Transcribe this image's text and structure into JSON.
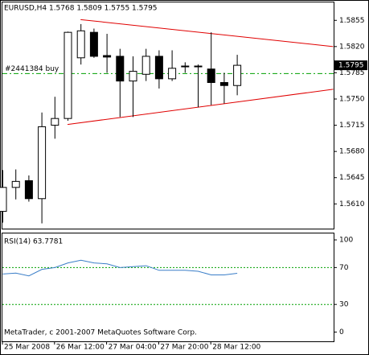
{
  "chart_data": [
    {
      "type": "candlestick",
      "title": "EURUSD,H4  1.5768 1.5809 1.5755 1.5795",
      "categories": [
        "25 Mar 2008",
        null,
        null,
        null,
        "26 Mar 12:00",
        null,
        null,
        null,
        "27 Mar 04:00",
        null,
        null,
        null,
        "27 Mar 20:00",
        null,
        null,
        null,
        "28 Mar 12:00",
        null,
        null
      ],
      "open": [
        1.56,
        1.5632,
        1.5641,
        1.5617,
        1.5715,
        1.5724,
        1.5805,
        1.5839,
        1.5808,
        1.5807,
        1.5774,
        1.5783,
        1.5807,
        1.5777,
        1.5793,
        1.5794,
        1.579,
        1.5772,
        1.5768
      ],
      "high": [
        1.5655,
        1.5656,
        1.5648,
        1.5732,
        1.5753,
        1.584,
        1.585,
        1.5844,
        1.5837,
        1.5817,
        1.5807,
        1.5817,
        1.5815,
        1.5815,
        1.5799,
        1.5796,
        1.5839,
        1.5785,
        1.5809
      ],
      "low": [
        1.5585,
        1.5616,
        1.5613,
        1.5584,
        1.5697,
        1.5721,
        1.5796,
        1.5805,
        1.5785,
        1.5726,
        1.5726,
        1.5774,
        1.5764,
        1.5774,
        1.5785,
        1.5739,
        1.5742,
        1.5744,
        1.5755
      ],
      "close": [
        1.5632,
        1.564,
        1.5617,
        1.5713,
        1.5724,
        1.5839,
        1.5841,
        1.5807,
        1.5806,
        1.5774,
        1.5787,
        1.5807,
        1.5777,
        1.5791,
        1.5794,
        1.5793,
        1.5772,
        1.5768,
        1.5795
      ],
      "bull_color": "#ffffff",
      "bear_color": "#000000",
      "ylim": [
        1.5577,
        1.588
      ],
      "yticks": [
        1.5855,
        {
          "value": 1.582,
          "label": "1.5820"
        },
        1.5785,
        {
          "value": 1.575,
          "label": "1.5750"
        },
        1.5715,
        {
          "value": 1.568,
          "label": "1.5680"
        },
        1.5645,
        {
          "value": 1.561,
          "label": "1.5610"
        }
      ],
      "trend_lines": [
        {
          "color": "#e00000",
          "x": [
            6,
            25.4
          ],
          "y": [
            1.5856,
            1.582
          ]
        },
        {
          "color": "#e00000",
          "x": [
            5,
            25.4
          ],
          "y": [
            1.5716,
            1.5763
          ]
        }
      ],
      "order_line": {
        "label": "#2441384 buy",
        "value": 1.5784,
        "color": "#00a000"
      }
    },
    {
      "type": "line",
      "title": "RSI(14) 63.7781",
      "color": "#3a7ec8",
      "values": [
        63,
        64,
        61,
        68,
        70,
        75,
        78,
        75,
        74,
        70,
        71,
        72,
        67,
        67,
        67,
        66,
        62,
        62,
        63.78
      ],
      "ylim": [
        -10,
        107
      ],
      "yticks": [
        100,
        70,
        30,
        0
      ],
      "levels": [
        70,
        30
      ],
      "level_color": "#00a000",
      "footer": "MetaTrader, c 2001-2007 MetaQuotes Software Corp."
    }
  ]
}
